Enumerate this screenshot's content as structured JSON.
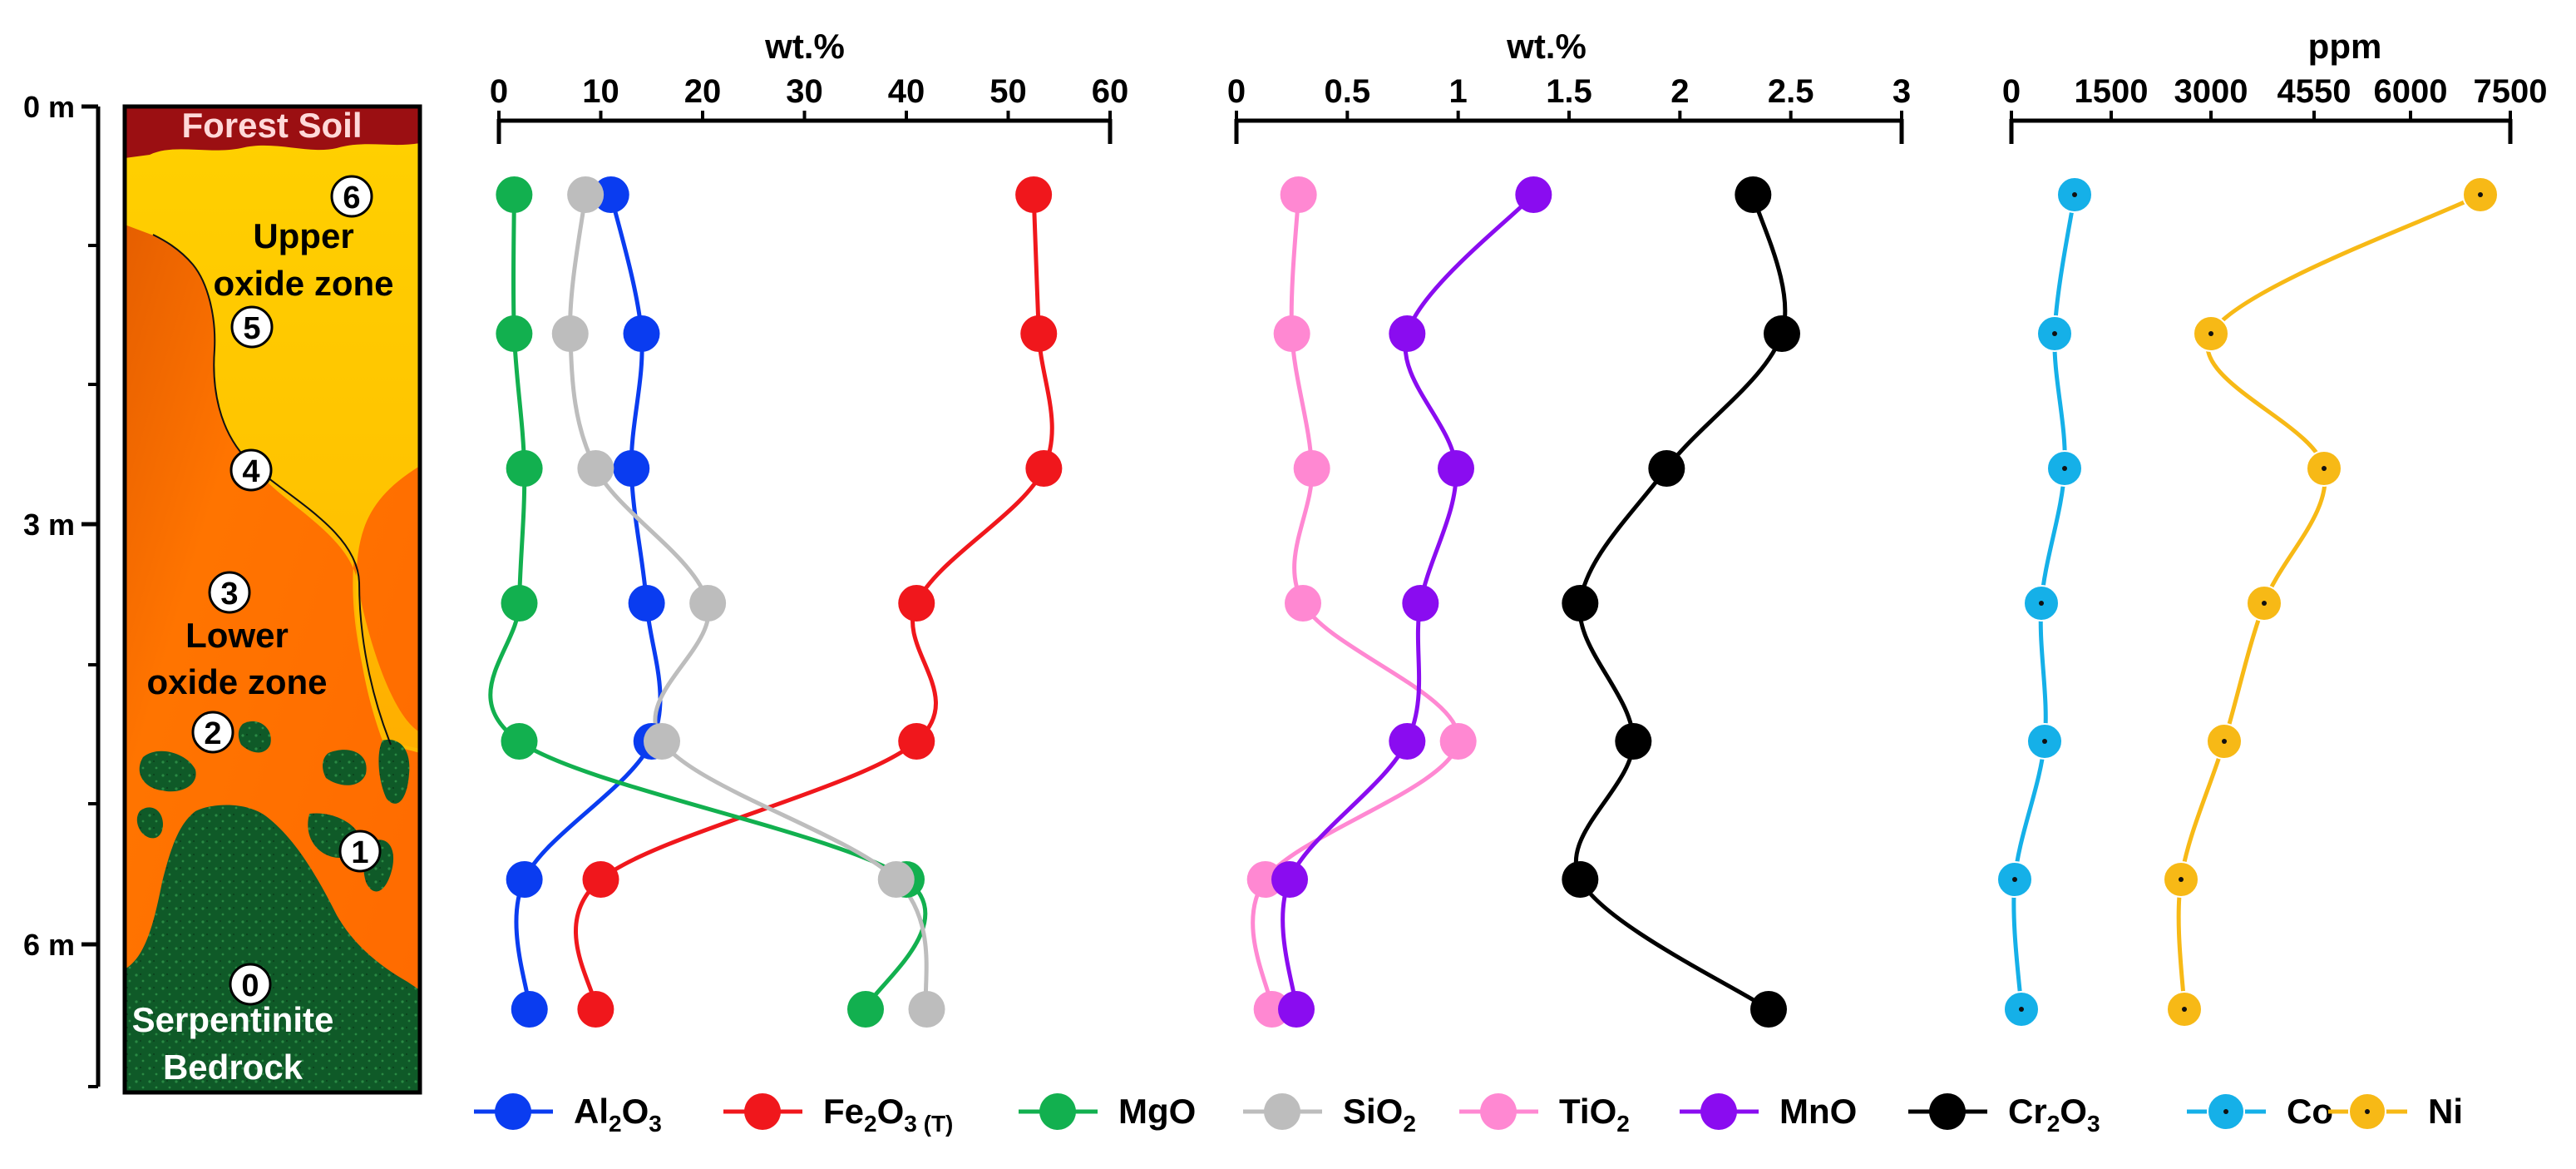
{
  "chart_data": [
    {
      "type": "diagram",
      "panel": "profile",
      "depth_ticks": [
        {
          "label": "0 m",
          "depth": 0
        },
        {
          "label": "3 m",
          "depth": 3
        },
        {
          "label": "6 m",
          "depth": 6
        }
      ],
      "zone_labels": {
        "forest_soil": "Forest Soil",
        "upper_1": "Upper",
        "upper_2": "oxide zone",
        "lower_1": "Lower",
        "lower_2": "oxide zone",
        "bedrock_1": "Serpentinite",
        "bedrock_2": "Bedrock"
      },
      "sample_markers": [
        "0",
        "1",
        "2",
        "3",
        "4",
        "5",
        "6"
      ],
      "colors": {
        "forest_soil": "#9b0f12",
        "upper_oxide": "#ffc400",
        "lower_oxide": "#ff6d00",
        "bedrock": "#0f5a28",
        "bedrock_texture": "#1f7a3a",
        "frame": "#000000"
      }
    },
    {
      "type": "line",
      "panel": "wt1",
      "xlabel": "wt.%",
      "xlim": [
        0,
        60
      ],
      "xticks": [
        0,
        10,
        20,
        30,
        40,
        50,
        60
      ],
      "depth_order": [
        "6",
        "5",
        "4",
        "3",
        "2",
        "1",
        "0"
      ],
      "series": [
        {
          "name": "Al2O3",
          "color": "#0a3cf0",
          "values": [
            11,
            14,
            13,
            14.5,
            15,
            2.5,
            3
          ]
        },
        {
          "name": "Fe2O3 (T)",
          "color": "#f0171c",
          "values": [
            52.5,
            53,
            53.5,
            41,
            41,
            10,
            9.5
          ]
        },
        {
          "name": "MgO",
          "color": "#12b04f",
          "values": [
            1.5,
            1.5,
            2.5,
            2,
            2,
            40,
            36
          ]
        },
        {
          "name": "SiO2",
          "color": "#bdbdbd",
          "values": [
            8.5,
            7,
            9.5,
            20.5,
            16,
            39,
            42
          ]
        }
      ]
    },
    {
      "type": "line",
      "panel": "wt2",
      "xlabel": "wt.%",
      "xlim": [
        0,
        3
      ],
      "xticks": [
        "0",
        "0.5",
        "1",
        "1.5",
        "2",
        "2.5",
        "3"
      ],
      "depth_order": [
        "6",
        "5",
        "4",
        "3",
        "2",
        "1",
        "0"
      ],
      "series": [
        {
          "name": "TiO2",
          "color": "#ff88d2",
          "values": [
            0.28,
            0.25,
            0.34,
            0.3,
            1.0,
            0.13,
            0.16
          ]
        },
        {
          "name": "MnO",
          "color": "#8a0cf0",
          "values": [
            1.34,
            0.77,
            0.99,
            0.83,
            0.77,
            0.24,
            0.27
          ]
        },
        {
          "name": "Cr2O3",
          "color": "#000000",
          "values": [
            2.33,
            2.46,
            1.94,
            1.55,
            1.79,
            1.55,
            2.4
          ]
        }
      ]
    },
    {
      "type": "line",
      "panel": "ppm",
      "xlabel": "ppm",
      "xlim": [
        0,
        7500
      ],
      "xticks": [
        0,
        1500,
        3000,
        4550,
        6000,
        7500
      ],
      "depth_order": [
        "6",
        "5",
        "4",
        "3",
        "2",
        "1",
        "0"
      ],
      "series": [
        {
          "name": "Co",
          "color": "#15b0e8",
          "values": [
            950,
            650,
            800,
            450,
            500,
            50,
            150
          ]
        },
        {
          "name": "Ni",
          "color": "#f7b916",
          "values": [
            7050,
            3000,
            4700,
            3800,
            3200,
            2550,
            2600
          ]
        }
      ]
    }
  ],
  "legend": [
    {
      "key": "al2o3",
      "parts": [
        {
          "t": "Al"
        },
        {
          "t": "2",
          "sub": true
        },
        {
          "t": "O"
        },
        {
          "t": "3",
          "sub": true
        }
      ],
      "color": "#0a3cf0",
      "dot": false
    },
    {
      "key": "fe2o3",
      "parts": [
        {
          "t": "Fe"
        },
        {
          "t": "2",
          "sub": true
        },
        {
          "t": "O"
        },
        {
          "t": "3",
          "sub": true
        },
        {
          "t": " (T)",
          "sub": true
        }
      ],
      "color": "#f0171c",
      "dot": false
    },
    {
      "key": "mgo",
      "parts": [
        {
          "t": "MgO"
        }
      ],
      "color": "#12b04f",
      "dot": false
    },
    {
      "key": "sio2",
      "parts": [
        {
          "t": "SiO"
        },
        {
          "t": "2",
          "sub": true
        }
      ],
      "color": "#bdbdbd",
      "dot": false
    },
    {
      "key": "tio2",
      "parts": [
        {
          "t": "TiO"
        },
        {
          "t": "2",
          "sub": true
        }
      ],
      "color": "#ff88d2",
      "dot": false
    },
    {
      "key": "mno",
      "parts": [
        {
          "t": "MnO"
        }
      ],
      "color": "#8a0cf0",
      "dot": false
    },
    {
      "key": "cr2o3",
      "parts": [
        {
          "t": "Cr"
        },
        {
          "t": "2",
          "sub": true
        },
        {
          "t": "O"
        },
        {
          "t": "3",
          "sub": true
        }
      ],
      "color": "#000000",
      "dot": false
    },
    {
      "key": "co",
      "parts": [
        {
          "t": "Co"
        }
      ],
      "color": "#15b0e8",
      "dot": true
    },
    {
      "key": "ni",
      "parts": [
        {
          "t": "Ni"
        }
      ],
      "color": "#f7b916",
      "dot": true
    }
  ]
}
